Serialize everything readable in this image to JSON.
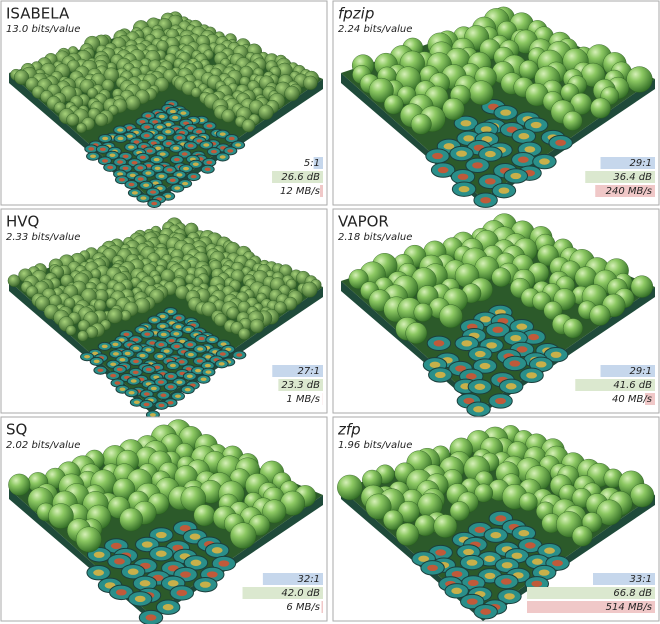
{
  "panels": [
    {
      "title": "ISABELA",
      "rate": "13.0 bits/value",
      "ratio": {
        "value": 5,
        "label": "5:1"
      },
      "psnr": {
        "value": 26.6,
        "label": "26.6 dB"
      },
      "speed": {
        "value": 12,
        "label": "12 MB/s"
      }
    },
    {
      "title": "fpzip",
      "title_italic": true,
      "rate": "2.24 bits/value",
      "ratio": {
        "value": 29,
        "label": "29:1"
      },
      "psnr": {
        "value": 36.4,
        "label": "36.4 dB"
      },
      "speed": {
        "value": 240,
        "label": "240 MB/s"
      }
    },
    {
      "title": "HVQ",
      "rate": "2.33 bits/value",
      "ratio": {
        "value": 27,
        "label": "27:1"
      },
      "psnr": {
        "value": 23.3,
        "label": "23.3 dB"
      },
      "speed": {
        "value": 1,
        "label": "1 MB/s"
      }
    },
    {
      "title": "VAPOR",
      "rate": "2.18 bits/value",
      "ratio": {
        "value": 29,
        "label": "29:1"
      },
      "psnr": {
        "value": 41.6,
        "label": "41.6 dB"
      },
      "speed": {
        "value": 40,
        "label": "40 MB/s"
      }
    },
    {
      "title": "SQ",
      "rate": "2.02 bits/value",
      "ratio": {
        "value": 32,
        "label": "32:1"
      },
      "psnr": {
        "value": 42.0,
        "label": "42.0 dB"
      },
      "speed": {
        "value": 6,
        "label": "6 MB/s"
      }
    },
    {
      "title": "zfp",
      "title_italic": true,
      "rate": "1.96 bits/value",
      "ratio": {
        "value": 33,
        "label": "33:1"
      },
      "psnr": {
        "value": 66.8,
        "label": "66.8 dB"
      },
      "speed": {
        "value": 514,
        "label": "514 MB/s"
      }
    }
  ]
}
